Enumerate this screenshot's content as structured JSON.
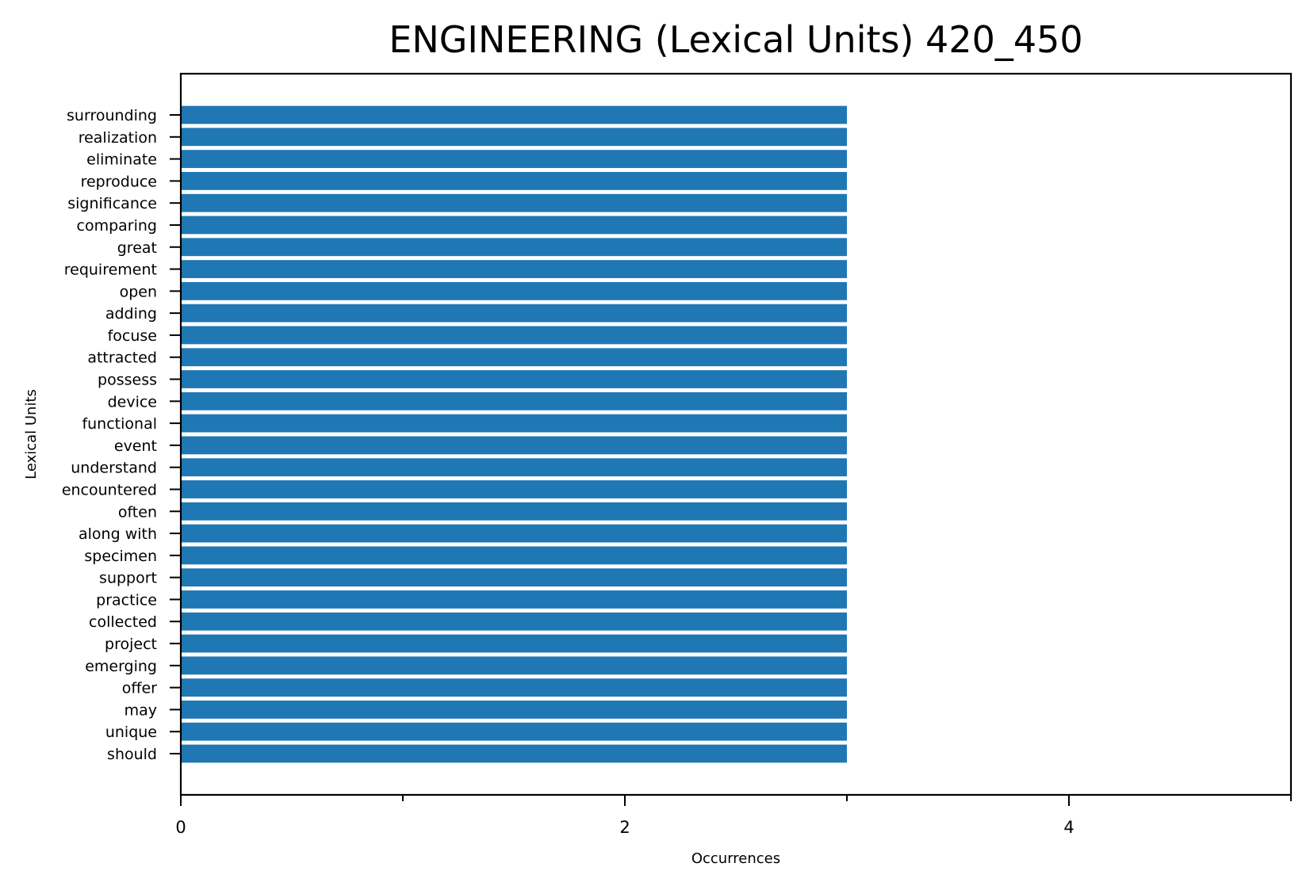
{
  "chart_data": {
    "type": "bar",
    "orientation": "horizontal",
    "title": "ENGINEERING (Lexical Units) 420_450",
    "xlabel": "Occurrences",
    "ylabel": "Lexical Units",
    "xlim": [
      0,
      5
    ],
    "x_ticks": [
      0,
      2,
      4
    ],
    "x_ticks_minor": [
      1,
      3,
      5
    ],
    "grid": false,
    "bar_color": "#1f77b4",
    "categories": [
      "surrounding",
      "realization",
      "eliminate",
      "reproduce",
      "significance",
      "comparing",
      "great",
      "requirement",
      "open",
      "adding",
      "focuse",
      "attracted",
      "possess",
      "device",
      "functional",
      "event",
      "understand",
      "encountered",
      "often",
      "along with",
      "specimen",
      "support",
      "practice",
      "collected",
      "project",
      "emerging",
      "offer",
      "may",
      "unique",
      "should"
    ],
    "values": [
      3,
      3,
      3,
      3,
      3,
      3,
      3,
      3,
      3,
      3,
      3,
      3,
      3,
      3,
      3,
      3,
      3,
      3,
      3,
      3,
      3,
      3,
      3,
      3,
      3,
      3,
      3,
      3,
      3,
      3
    ]
  }
}
